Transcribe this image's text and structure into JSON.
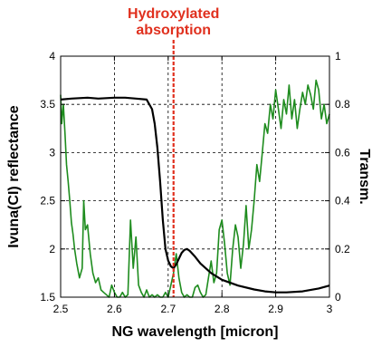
{
  "chart_data": {
    "type": "line",
    "annotation": {
      "line1": "Hydroxylated",
      "line2": "absorption",
      "x": 2.71,
      "color": "#e0301e"
    },
    "xlabel": "NG wavelength [micron]",
    "ylabel_left": "Ivuna(CI) reflectance",
    "ylabel_right": "Transm.",
    "xlim": [
      2.5,
      3.0
    ],
    "ylim_left": [
      1.5,
      4.0
    ],
    "ylim_right": [
      0,
      1
    ],
    "x_ticks": [
      "2.5",
      "2.6",
      "2.7",
      "2.8",
      "2.9",
      "3"
    ],
    "y_left_ticks": [
      "1.5",
      "2",
      "2.5",
      "3",
      "3.5",
      "4"
    ],
    "y_right_ticks": [
      "0",
      "0.2",
      "0.4",
      "0.6",
      "0.8",
      "1"
    ],
    "grid": true,
    "series": [
      {
        "axis": "left",
        "color": "#000000",
        "x": [
          2.5,
          2.52,
          2.55,
          2.57,
          2.6,
          2.62,
          2.64,
          2.66,
          2.67,
          2.675,
          2.68,
          2.685,
          2.69,
          2.695,
          2.7,
          2.705,
          2.71,
          2.715,
          2.72,
          2.725,
          2.73,
          2.735,
          2.74,
          2.75,
          2.76,
          2.78,
          2.8,
          2.83,
          2.86,
          2.88,
          2.9,
          2.92,
          2.95,
          2.98,
          3.0
        ],
        "y": [
          3.55,
          3.56,
          3.57,
          3.56,
          3.57,
          3.57,
          3.56,
          3.55,
          3.45,
          3.3,
          3.05,
          2.7,
          2.3,
          2.0,
          1.88,
          1.82,
          1.8,
          1.84,
          1.9,
          1.96,
          1.99,
          2.0,
          1.98,
          1.92,
          1.85,
          1.75,
          1.68,
          1.62,
          1.58,
          1.56,
          1.55,
          1.55,
          1.56,
          1.59,
          1.62
        ]
      },
      {
        "axis": "right",
        "color": "#1e8c1e",
        "x": [
          2.5,
          2.502,
          2.505,
          2.508,
          2.511,
          2.514,
          2.517,
          2.52,
          2.523,
          2.526,
          2.53,
          2.535,
          2.54,
          2.543,
          2.546,
          2.55,
          2.555,
          2.56,
          2.565,
          2.57,
          2.575,
          2.58,
          2.585,
          2.59,
          2.595,
          2.6,
          2.605,
          2.61,
          2.615,
          2.62,
          2.625,
          2.63,
          2.635,
          2.64,
          2.645,
          2.65,
          2.655,
          2.66,
          2.665,
          2.67,
          2.675,
          2.68,
          2.685,
          2.69,
          2.695,
          2.7,
          2.705,
          2.71,
          2.715,
          2.72,
          2.725,
          2.73,
          2.735,
          2.74,
          2.745,
          2.75,
          2.755,
          2.76,
          2.765,
          2.77,
          2.775,
          2.78,
          2.785,
          2.79,
          2.795,
          2.8,
          2.805,
          2.81,
          2.815,
          2.82,
          2.825,
          2.83,
          2.835,
          2.84,
          2.845,
          2.85,
          2.855,
          2.86,
          2.865,
          2.87,
          2.875,
          2.88,
          2.885,
          2.89,
          2.895,
          2.9,
          2.905,
          2.91,
          2.915,
          2.92,
          2.925,
          2.93,
          2.935,
          2.94,
          2.945,
          2.95,
          2.955,
          2.96,
          2.965,
          2.97,
          2.975,
          2.98,
          2.985,
          2.99,
          2.995,
          3.0
        ],
        "y": [
          0.84,
          0.72,
          0.8,
          0.68,
          0.55,
          0.48,
          0.4,
          0.31,
          0.26,
          0.2,
          0.14,
          0.08,
          0.12,
          0.4,
          0.28,
          0.3,
          0.18,
          0.1,
          0.06,
          0.08,
          0.03,
          0.02,
          0.01,
          0.0,
          0.05,
          0.02,
          0.0,
          0.0,
          0.02,
          0.0,
          0.01,
          0.32,
          0.12,
          0.25,
          0.05,
          0.02,
          0.0,
          0.03,
          0.0,
          0.01,
          0.0,
          0.01,
          0.0,
          0.0,
          0.02,
          0.0,
          0.05,
          0.1,
          0.18,
          0.08,
          0.02,
          0.0,
          0.01,
          0.0,
          0.0,
          0.04,
          0.05,
          0.02,
          0.0,
          0.01,
          0.08,
          0.15,
          0.06,
          0.1,
          0.28,
          0.32,
          0.22,
          0.1,
          0.05,
          0.2,
          0.3,
          0.25,
          0.12,
          0.22,
          0.38,
          0.2,
          0.28,
          0.4,
          0.55,
          0.48,
          0.6,
          0.72,
          0.68,
          0.8,
          0.74,
          0.86,
          0.78,
          0.7,
          0.82,
          0.76,
          0.88,
          0.74,
          0.82,
          0.7,
          0.78,
          0.85,
          0.8,
          0.88,
          0.84,
          0.78,
          0.9,
          0.86,
          0.74,
          0.8,
          0.72,
          0.76
        ]
      }
    ]
  }
}
